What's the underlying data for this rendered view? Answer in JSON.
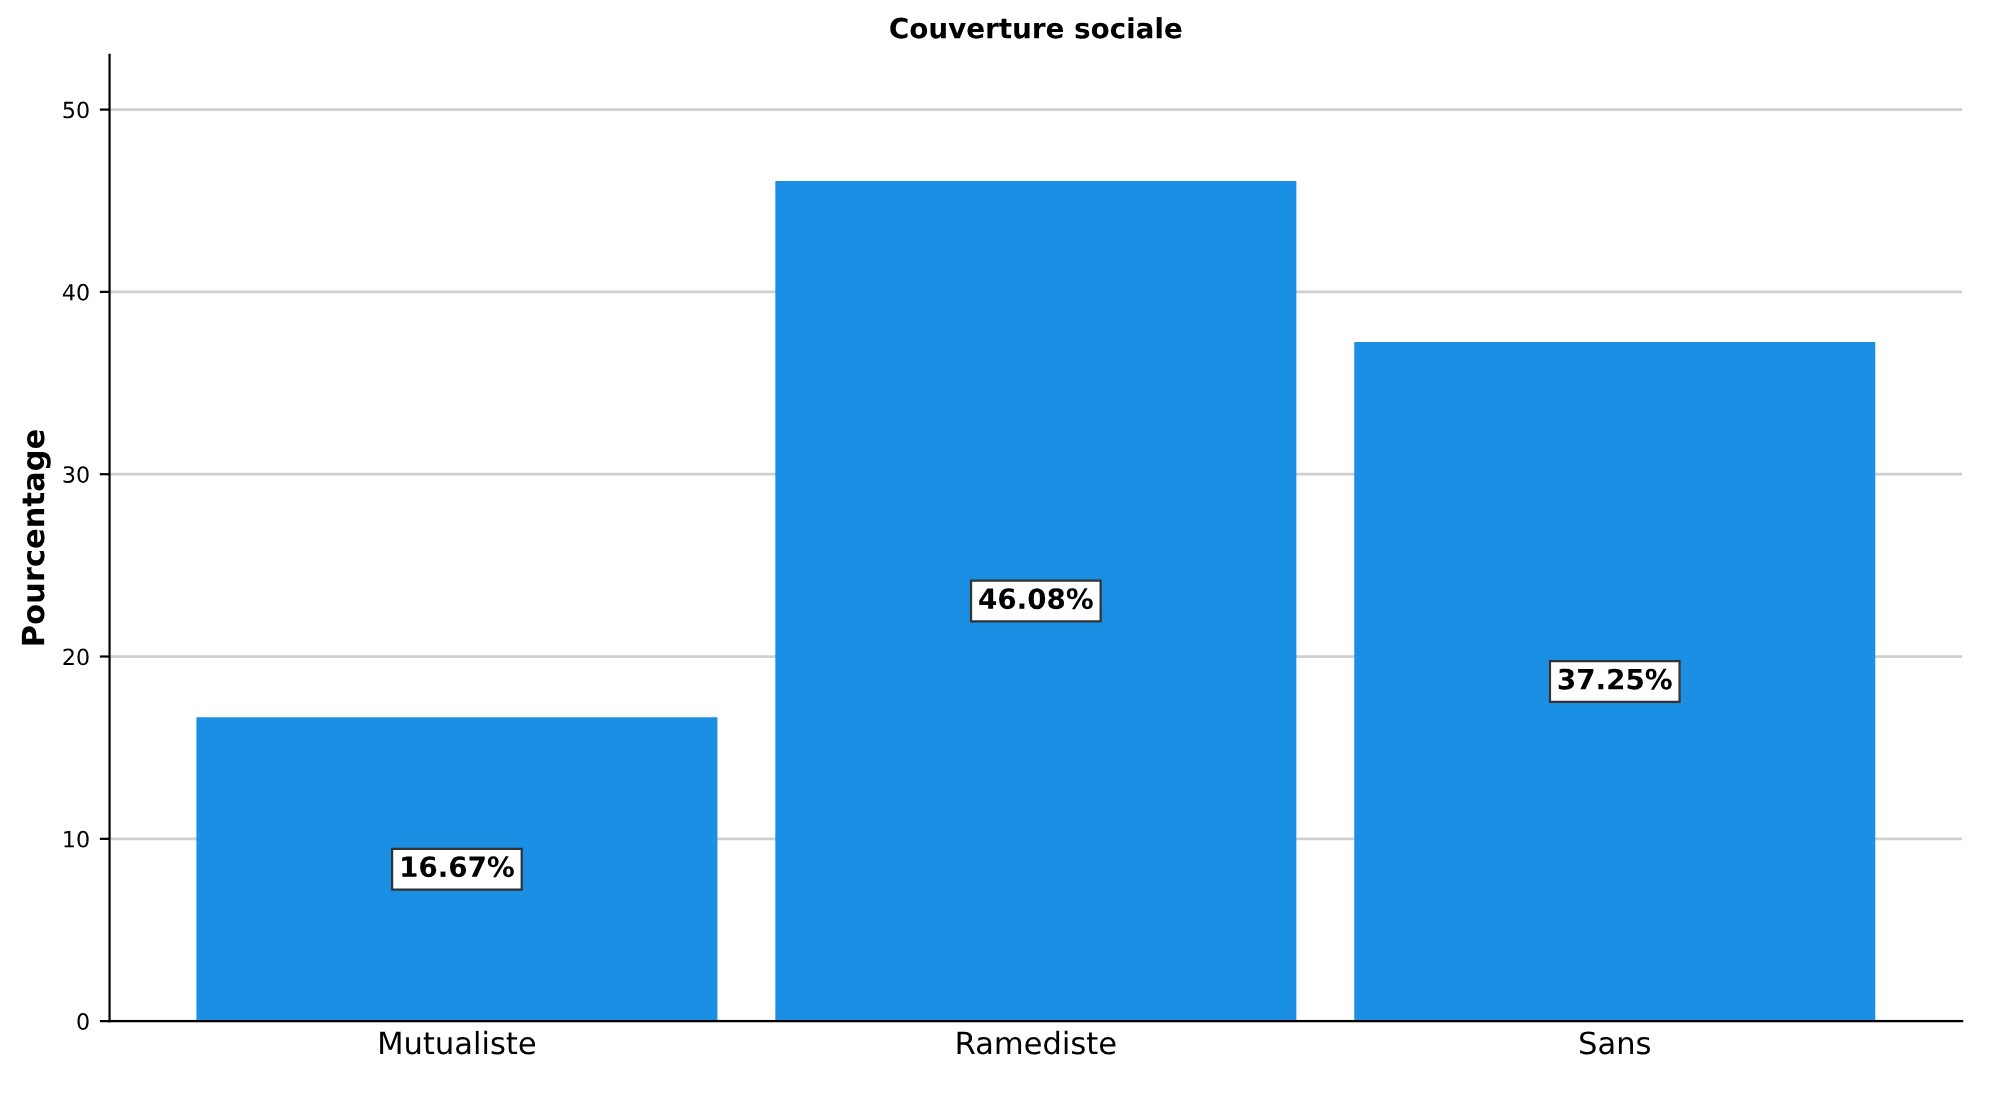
{
  "chart_data": {
    "type": "bar",
    "title": "Couverture sociale",
    "ylabel": "Pourcentage",
    "categories": [
      "Mutualiste",
      "Ramediste",
      "Sans"
    ],
    "values": [
      16.67,
      46.08,
      37.25
    ],
    "value_labels": [
      "16.67%",
      "46.08%",
      "37.25%"
    ],
    "color": "#1b8fe3",
    "ylim": [
      0,
      53
    ],
    "yticks": [
      0,
      10,
      20,
      30,
      40,
      50
    ],
    "grid": "y"
  }
}
